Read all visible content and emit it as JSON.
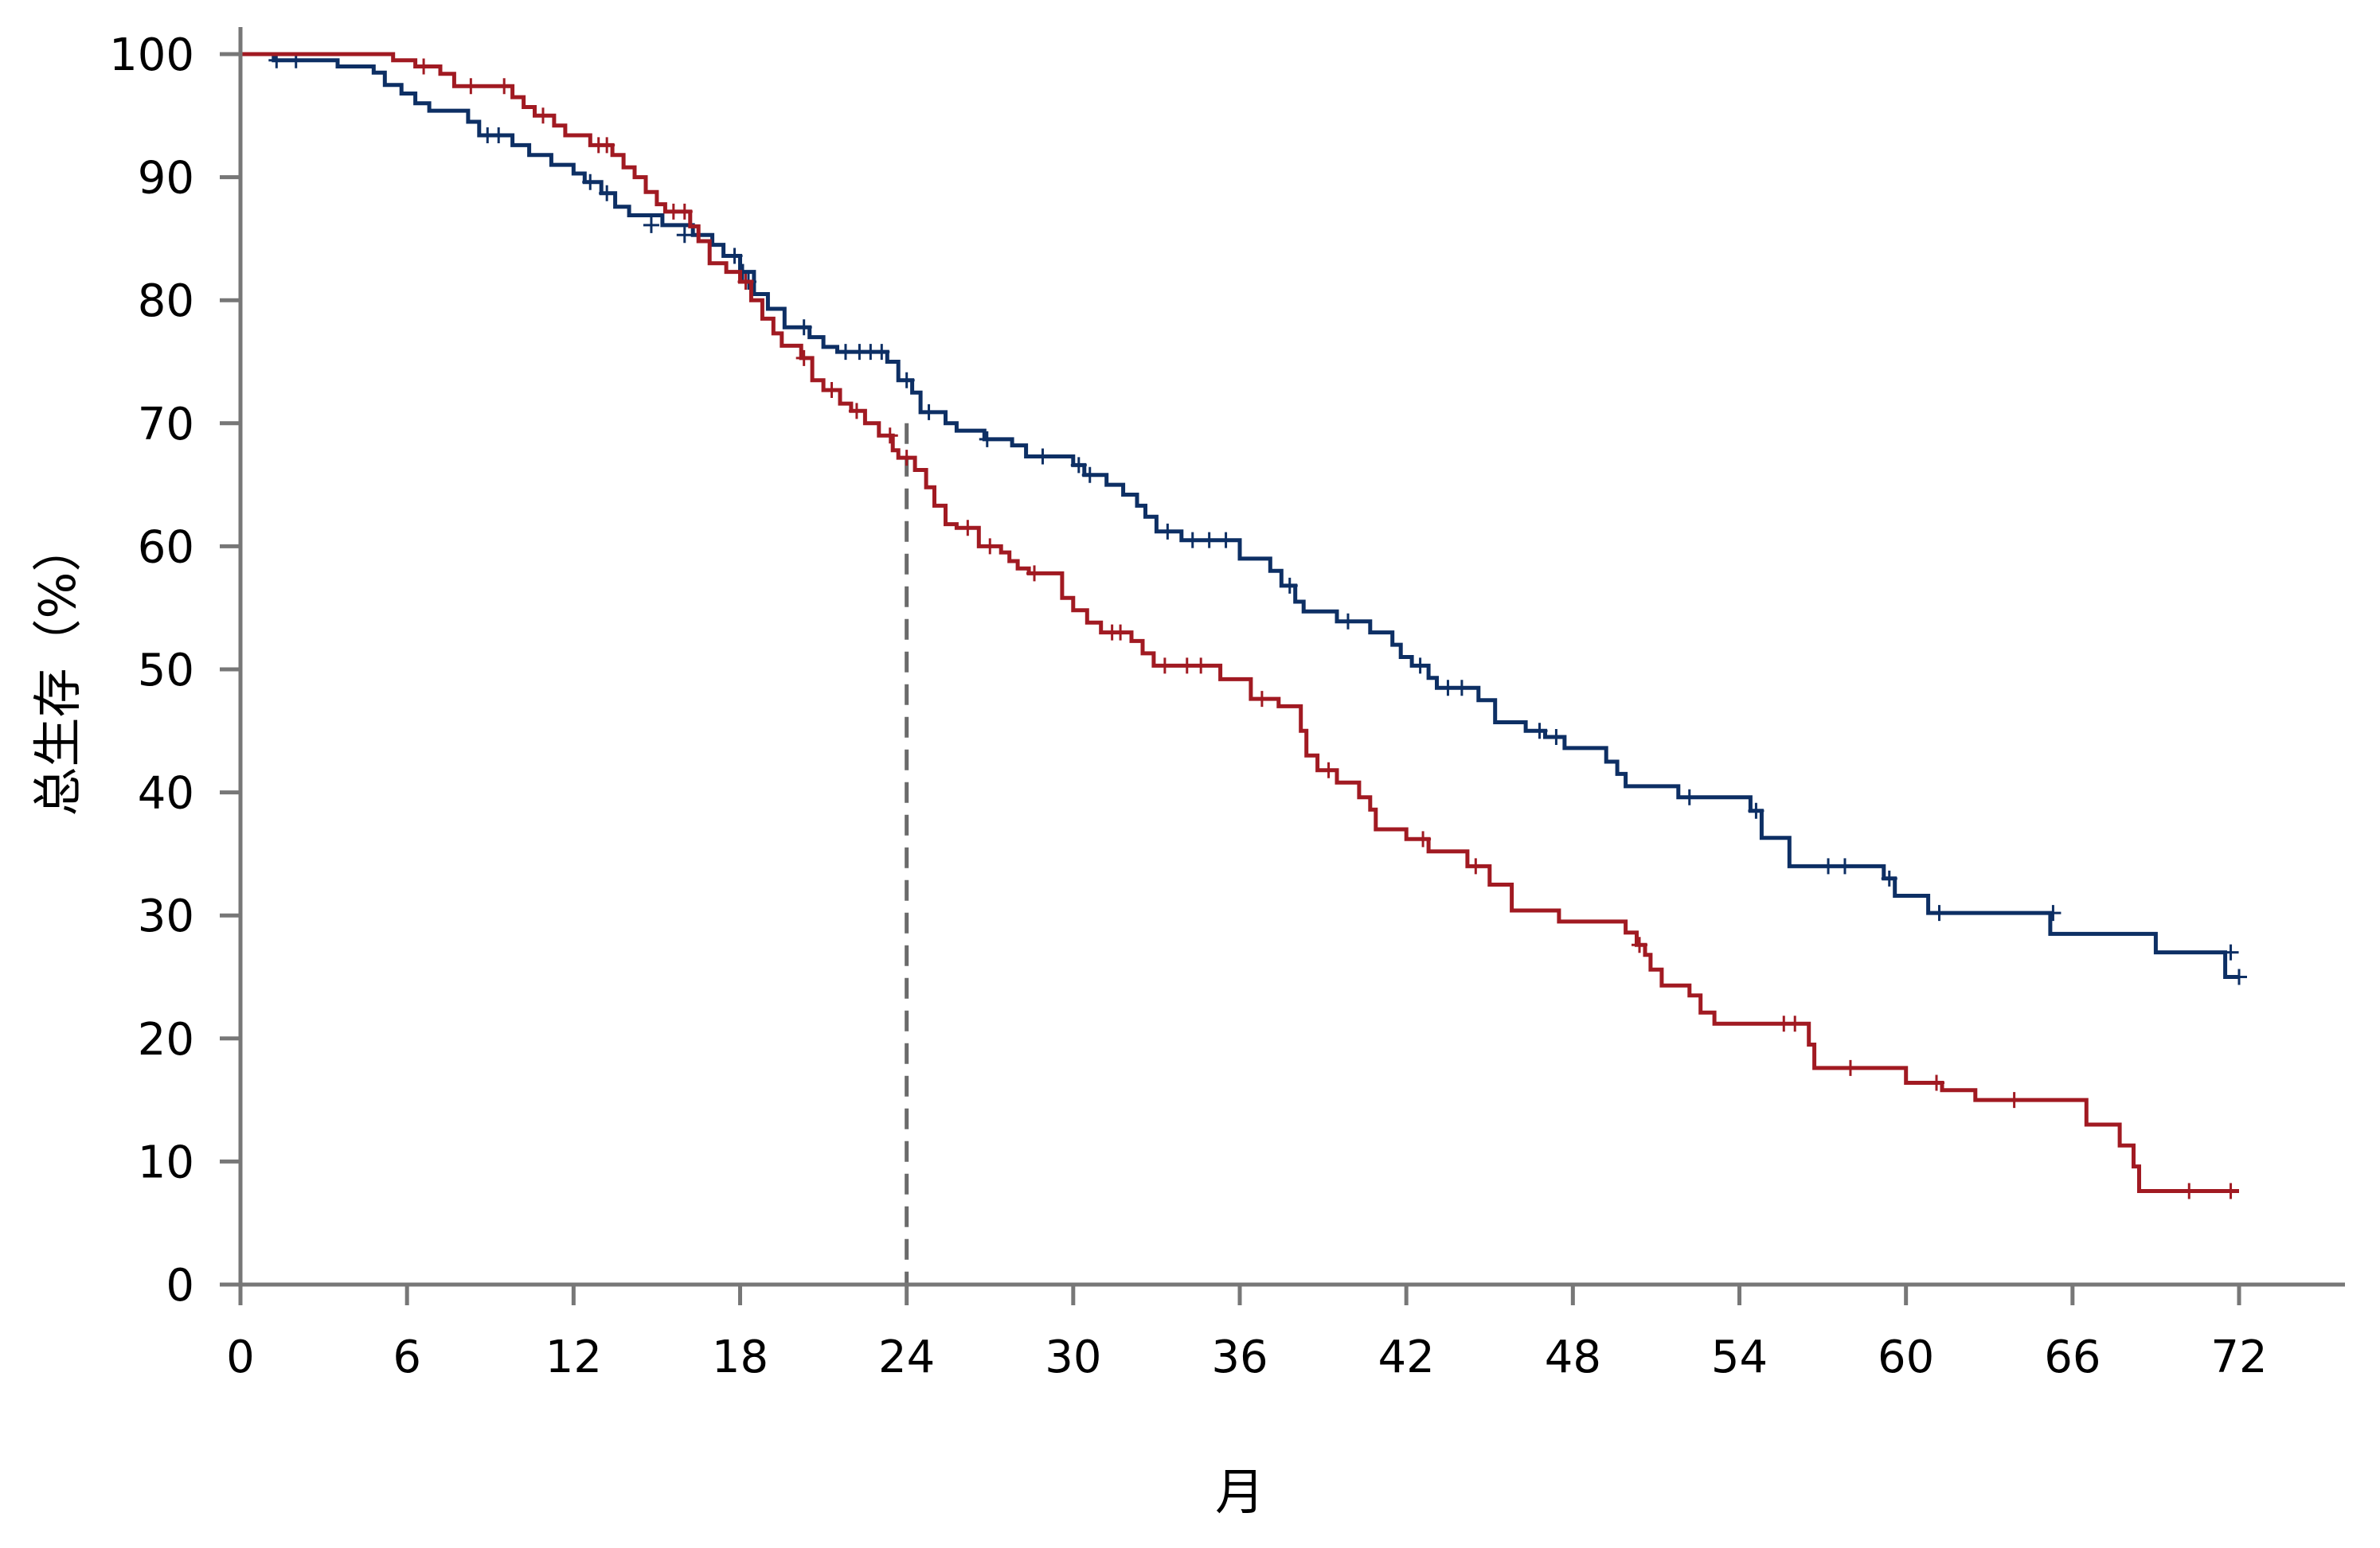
{
  "chart_data": {
    "type": "line",
    "step": true,
    "xlabel": "月",
    "ylabel": "总生存（%）",
    "xlim": [
      0,
      72
    ],
    "ylim": [
      0,
      100
    ],
    "xticks": [
      0,
      6,
      12,
      18,
      24,
      30,
      36,
      42,
      48,
      54,
      60,
      66,
      72
    ],
    "yticks": [
      0,
      10,
      20,
      30,
      40,
      50,
      60,
      70,
      80,
      90,
      100
    ],
    "reference_line": {
      "x": 24,
      "style": "dashed",
      "color": "#6b6b6b"
    },
    "grid": false,
    "legend": "none",
    "censor_marker": "+",
    "series": [
      {
        "color": "#0d2f64",
        "points": [
          [
            0,
            100
          ],
          [
            1.2,
            99.5
          ],
          [
            3.5,
            99
          ],
          [
            4.8,
            98.5
          ],
          [
            5.2,
            97.5
          ],
          [
            5.8,
            96.8
          ],
          [
            6.3,
            96
          ],
          [
            6.8,
            95.4
          ],
          [
            8.2,
            94.5
          ],
          [
            8.6,
            93.4
          ],
          [
            9.8,
            92.6
          ],
          [
            10.4,
            91.8
          ],
          [
            11.2,
            91
          ],
          [
            12.0,
            90.3
          ],
          [
            12.4,
            89.6
          ],
          [
            13.0,
            88.7
          ],
          [
            13.5,
            87.6
          ],
          [
            14.0,
            86.9
          ],
          [
            15.2,
            86.1
          ],
          [
            16.3,
            85.3
          ],
          [
            17.0,
            84.5
          ],
          [
            17.4,
            83.6
          ],
          [
            18.0,
            82.3
          ],
          [
            18.5,
            80.5
          ],
          [
            19.0,
            79.3
          ],
          [
            19.6,
            77.8
          ],
          [
            20.5,
            77.0
          ],
          [
            21.0,
            76.2
          ],
          [
            21.5,
            75.8
          ],
          [
            23.3,
            75.0
          ],
          [
            23.7,
            73.5
          ],
          [
            24.2,
            72.5
          ],
          [
            24.5,
            70.9
          ],
          [
            25.4,
            70.0
          ],
          [
            25.8,
            69.4
          ],
          [
            26.8,
            68.7
          ],
          [
            27.8,
            68.2
          ],
          [
            28.3,
            67.3
          ],
          [
            30.0,
            66.6
          ],
          [
            30.4,
            65.8
          ],
          [
            31.2,
            65.0
          ],
          [
            31.8,
            64.2
          ],
          [
            32.3,
            63.3
          ],
          [
            32.6,
            62.4
          ],
          [
            33.0,
            61.2
          ],
          [
            33.9,
            60.5
          ],
          [
            36.0,
            59.0
          ],
          [
            37.1,
            58.0
          ],
          [
            37.5,
            56.8
          ],
          [
            38.0,
            55.5
          ],
          [
            38.3,
            54.7
          ],
          [
            39.5,
            53.9
          ],
          [
            40.7,
            53.0
          ],
          [
            41.5,
            52.0
          ],
          [
            41.8,
            51.0
          ],
          [
            42.2,
            50.3
          ],
          [
            42.8,
            49.3
          ],
          [
            43.1,
            48.5
          ],
          [
            44.6,
            47.5
          ],
          [
            45.2,
            45.7
          ],
          [
            46.3,
            45.0
          ],
          [
            47.0,
            44.5
          ],
          [
            47.7,
            43.6
          ],
          [
            49.2,
            42.5
          ],
          [
            49.6,
            41.5
          ],
          [
            49.9,
            40.5
          ],
          [
            51.8,
            39.6
          ],
          [
            54.4,
            38.5
          ],
          [
            54.8,
            36.3
          ],
          [
            55.8,
            34.0
          ],
          [
            59.2,
            33.0
          ],
          [
            59.6,
            31.6
          ],
          [
            60.8,
            30.2
          ],
          [
            65.2,
            28.5
          ],
          [
            69.0,
            27.0
          ],
          [
            71.5,
            25.0
          ],
          [
            72.0,
            25.0
          ]
        ],
        "censors": [
          [
            1.3,
            99.5
          ],
          [
            2.0,
            99.5
          ],
          [
            8.9,
            93.4
          ],
          [
            9.3,
            93.4
          ],
          [
            12.6,
            89.6
          ],
          [
            13.2,
            88.7
          ],
          [
            14.8,
            86.1
          ],
          [
            16.0,
            85.3
          ],
          [
            17.8,
            83.6
          ],
          [
            18.1,
            82.3
          ],
          [
            18.3,
            81.5
          ],
          [
            20.3,
            77.8
          ],
          [
            21.8,
            75.8
          ],
          [
            22.3,
            75.8
          ],
          [
            22.7,
            75.8
          ],
          [
            23.1,
            75.8
          ],
          [
            24.0,
            73.5
          ],
          [
            24.8,
            70.9
          ],
          [
            26.9,
            68.7
          ],
          [
            28.9,
            67.3
          ],
          [
            30.2,
            66.6
          ],
          [
            30.6,
            65.8
          ],
          [
            33.4,
            61.2
          ],
          [
            34.3,
            60.5
          ],
          [
            34.9,
            60.5
          ],
          [
            35.5,
            60.5
          ],
          [
            37.8,
            56.8
          ],
          [
            39.9,
            53.9
          ],
          [
            42.5,
            50.3
          ],
          [
            43.5,
            48.5
          ],
          [
            44.0,
            48.5
          ],
          [
            46.8,
            45.0
          ],
          [
            47.4,
            44.5
          ],
          [
            52.2,
            39.6
          ],
          [
            54.6,
            38.5
          ],
          [
            57.2,
            34.0
          ],
          [
            57.8,
            34.0
          ],
          [
            59.4,
            33.0
          ],
          [
            61.2,
            30.2
          ],
          [
            65.3,
            30.2
          ],
          [
            71.7,
            27.0
          ],
          [
            72.0,
            25.0
          ]
        ]
      },
      {
        "color": "#a11a22",
        "points": [
          [
            0,
            100
          ],
          [
            5.5,
            99.5
          ],
          [
            6.3,
            99
          ],
          [
            7.2,
            98.4
          ],
          [
            7.7,
            97.4
          ],
          [
            9.8,
            96.5
          ],
          [
            10.2,
            95.7
          ],
          [
            10.6,
            95.0
          ],
          [
            11.3,
            94.2
          ],
          [
            11.7,
            93.4
          ],
          [
            12.6,
            92.6
          ],
          [
            13.4,
            91.8
          ],
          [
            13.8,
            90.8
          ],
          [
            14.2,
            90.0
          ],
          [
            14.6,
            88.8
          ],
          [
            15.0,
            87.8
          ],
          [
            15.3,
            87.2
          ],
          [
            16.2,
            86.0
          ],
          [
            16.5,
            84.8
          ],
          [
            16.9,
            83.0
          ],
          [
            17.5,
            82.3
          ],
          [
            18.0,
            81.5
          ],
          [
            18.4,
            80.0
          ],
          [
            18.8,
            78.5
          ],
          [
            19.2,
            77.3
          ],
          [
            19.5,
            76.3
          ],
          [
            20.2,
            75.3
          ],
          [
            20.6,
            73.5
          ],
          [
            21.0,
            72.7
          ],
          [
            21.6,
            71.6
          ],
          [
            22.0,
            71.0
          ],
          [
            22.5,
            70.0
          ],
          [
            23.0,
            69.0
          ],
          [
            23.5,
            67.8
          ],
          [
            23.7,
            67.2
          ],
          [
            24.3,
            66.2
          ],
          [
            24.7,
            64.8
          ],
          [
            25.0,
            63.3
          ],
          [
            25.4,
            61.8
          ],
          [
            25.8,
            61.5
          ],
          [
            26.6,
            60.0
          ],
          [
            27.4,
            59.5
          ],
          [
            27.7,
            58.8
          ],
          [
            28.0,
            58.2
          ],
          [
            28.4,
            57.8
          ],
          [
            29.6,
            55.8
          ],
          [
            30.0,
            54.8
          ],
          [
            30.5,
            53.8
          ],
          [
            31.0,
            53.0
          ],
          [
            32.1,
            52.3
          ],
          [
            32.5,
            51.3
          ],
          [
            32.9,
            50.3
          ],
          [
            35.3,
            49.2
          ],
          [
            36.4,
            47.6
          ],
          [
            37.4,
            47.0
          ],
          [
            38.2,
            45.0
          ],
          [
            38.4,
            43.0
          ],
          [
            38.8,
            41.8
          ],
          [
            39.5,
            40.8
          ],
          [
            40.3,
            39.6
          ],
          [
            40.7,
            38.6
          ],
          [
            40.9,
            37.0
          ],
          [
            42.0,
            36.2
          ],
          [
            42.8,
            35.2
          ],
          [
            44.2,
            34.0
          ],
          [
            45.0,
            32.5
          ],
          [
            45.8,
            30.4
          ],
          [
            47.5,
            29.5
          ],
          [
            49.9,
            28.6
          ],
          [
            50.3,
            27.6
          ],
          [
            50.6,
            26.8
          ],
          [
            50.8,
            25.6
          ],
          [
            51.2,
            24.3
          ],
          [
            52.2,
            23.5
          ],
          [
            52.6,
            22.1
          ],
          [
            53.1,
            21.2
          ],
          [
            56.5,
            19.5
          ],
          [
            56.7,
            17.6
          ],
          [
            60.0,
            16.4
          ],
          [
            61.3,
            15.8
          ],
          [
            62.5,
            15.0
          ],
          [
            66.5,
            13.0
          ],
          [
            67.7,
            11.3
          ],
          [
            68.2,
            9.6
          ],
          [
            68.4,
            7.6
          ],
          [
            72.0,
            7.6
          ]
        ],
        "censors": [
          [
            6.6,
            99
          ],
          [
            8.3,
            97.4
          ],
          [
            9.5,
            97.4
          ],
          [
            10.9,
            95.0
          ],
          [
            12.9,
            92.6
          ],
          [
            13.2,
            92.6
          ],
          [
            15.6,
            87.2
          ],
          [
            16.0,
            87.2
          ],
          [
            18.2,
            81.5
          ],
          [
            20.3,
            75.3
          ],
          [
            21.3,
            72.7
          ],
          [
            22.2,
            71.0
          ],
          [
            23.4,
            69.0
          ],
          [
            24.0,
            67.2
          ],
          [
            26.2,
            61.5
          ],
          [
            27.0,
            60.0
          ],
          [
            28.6,
            57.8
          ],
          [
            31.4,
            53.0
          ],
          [
            31.7,
            53.0
          ],
          [
            33.3,
            50.3
          ],
          [
            34.1,
            50.3
          ],
          [
            34.6,
            50.3
          ],
          [
            36.8,
            47.6
          ],
          [
            39.2,
            41.8
          ],
          [
            42.6,
            36.2
          ],
          [
            44.5,
            34.0
          ],
          [
            50.4,
            27.6
          ],
          [
            55.6,
            21.2
          ],
          [
            56.0,
            21.2
          ],
          [
            58.0,
            17.6
          ],
          [
            61.1,
            16.4
          ],
          [
            63.9,
            15.0
          ],
          [
            70.2,
            7.6
          ],
          [
            71.7,
            7.6
          ]
        ]
      }
    ]
  }
}
